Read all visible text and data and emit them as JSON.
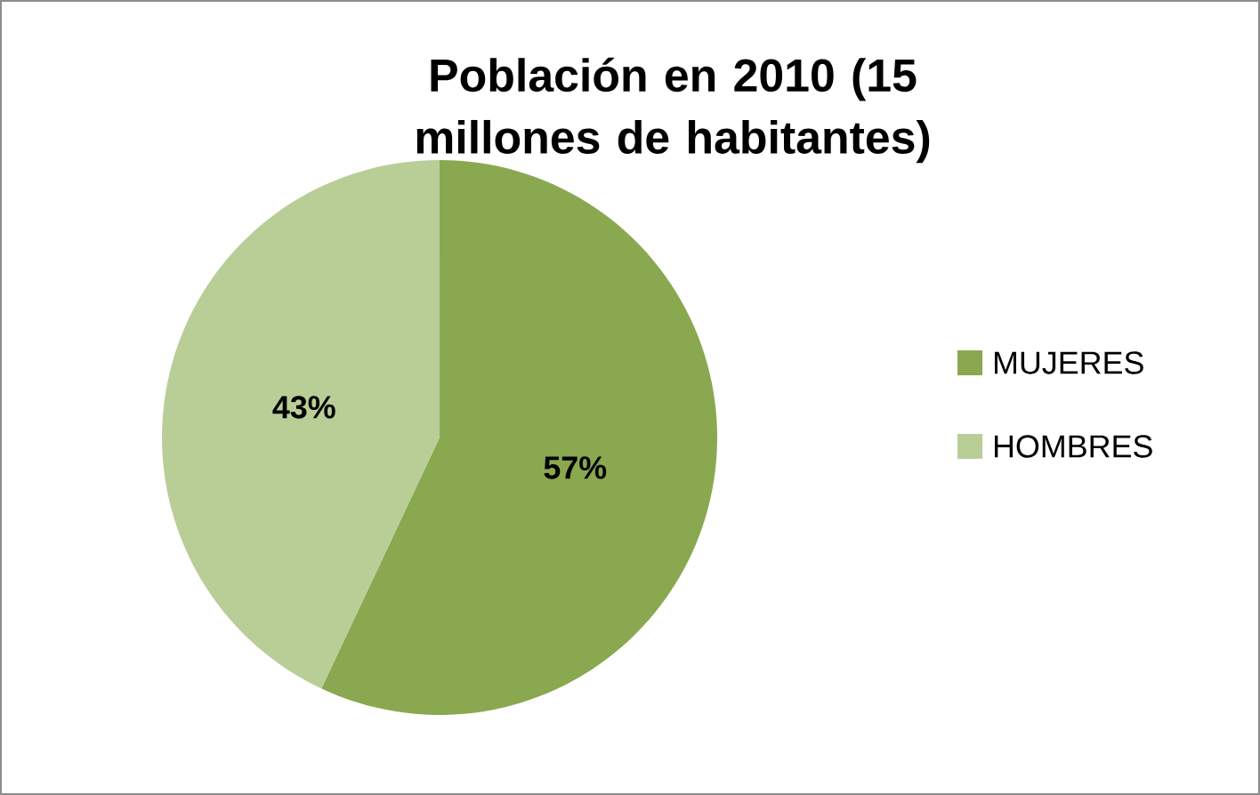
{
  "chart_data": {
    "type": "pie",
    "title": "Población en 2010 (15 millones de habitantes)",
    "categories": [
      "MUJERES",
      "HOMBRES"
    ],
    "values": [
      57,
      43
    ],
    "value_labels": [
      "57%",
      "43%"
    ],
    "colors": [
      "#8aa84f",
      "#b9ce97"
    ],
    "legend": "right"
  }
}
